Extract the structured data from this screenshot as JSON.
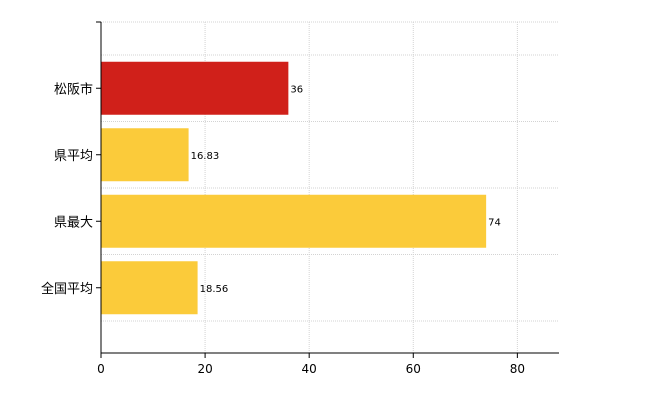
{
  "chart_data": {
    "type": "bar",
    "orientation": "horizontal",
    "categories": [
      "松阪市",
      "県平均",
      "県最大",
      "全国平均"
    ],
    "values": [
      36,
      16.83,
      74,
      18.56
    ],
    "value_labels": [
      "36",
      "16.83",
      "74",
      "18.56"
    ],
    "bar_colors": [
      "#d0201a",
      "#fbcb3a",
      "#fbcb3a",
      "#fbcb3a"
    ],
    "xlim": [
      0,
      88
    ],
    "xticks": [
      0,
      20,
      40,
      60,
      80
    ],
    "grid": true,
    "title": "",
    "xlabel": "",
    "ylabel": ""
  }
}
